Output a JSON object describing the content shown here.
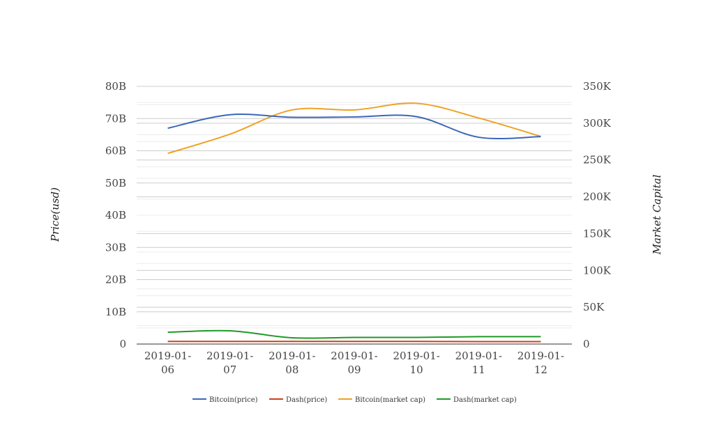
{
  "chart_data": {
    "type": "line",
    "categories": [
      "2019-01-06",
      "2019-01-07",
      "2019-01-08",
      "2019-01-09",
      "2019-01-10",
      "2019-01-11",
      "2019-01-12"
    ],
    "category_lines": [
      [
        "2019-01-",
        "06"
      ],
      [
        "2019-01-",
        "07"
      ],
      [
        "2019-01-",
        "08"
      ],
      [
        "2019-01-",
        "09"
      ],
      [
        "2019-01-",
        "10"
      ],
      [
        "2019-01-",
        "11"
      ],
      [
        "2019-01-",
        "12"
      ]
    ],
    "ylabel": "Price(usd)",
    "y2label": "Market Capital",
    "ylim": [
      0,
      80
    ],
    "y2lim": [
      0,
      350
    ],
    "yticks": [
      "0",
      "10B",
      "20B",
      "30B",
      "40B",
      "50B",
      "60B",
      "70B",
      "80B"
    ],
    "y2ticks": [
      "0",
      "50K",
      "100K",
      "150K",
      "200K",
      "250K",
      "300K",
      "350K"
    ],
    "grid": true,
    "legend_position": "bottom",
    "series": [
      {
        "name": "Bitcoin(price)",
        "axis": "left",
        "color": "#3b67b8",
        "values": [
          67.0,
          71.2,
          70.4,
          70.5,
          70.6,
          64.2,
          64.4
        ]
      },
      {
        "name": "Dash(price)",
        "axis": "left",
        "color": "#c8431e",
        "values": [
          0.8,
          0.8,
          0.8,
          0.8,
          0.8,
          0.75,
          0.75
        ]
      },
      {
        "name": "Bitcoin(market cap)",
        "axis": "right",
        "color": "#f0a124",
        "values": [
          259,
          285,
          318,
          318,
          327,
          307,
          282
        ]
      },
      {
        "name": "Dash(market cap)",
        "axis": "right",
        "color": "#1e9a26",
        "values": [
          16,
          18,
          8.5,
          9,
          9,
          10,
          10
        ]
      }
    ]
  }
}
